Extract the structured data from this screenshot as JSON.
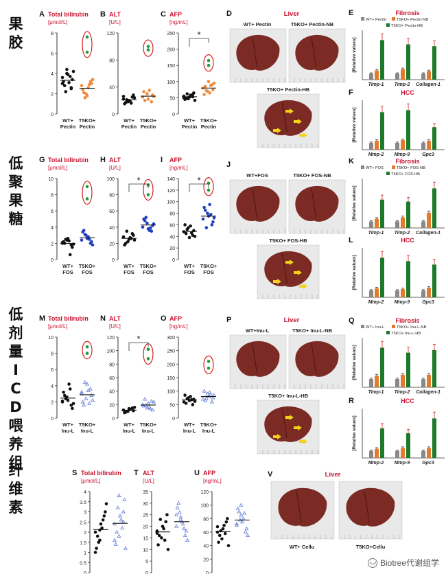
{
  "rows": [
    {
      "label": "果胶",
      "kind": "pectin"
    },
    {
      "label": "低聚果糖",
      "kind": "fos"
    },
    {
      "label": "低剂量ICD喂养组",
      "kind": "inu"
    },
    {
      "label": "纤维素",
      "kind": "cellu"
    }
  ],
  "watermark": "Biotree代谢组学",
  "colors": {
    "wt": "#111111",
    "t5ko_pectin": "#f08a3c",
    "t5ko_fos": "#1f3fc0",
    "t5ko_inu": "#6d86d8",
    "outlier": "#1f9a3a",
    "ring": "#d91c1c",
    "sig_title": "#c8102e",
    "bar_wt": "#888888",
    "bar_nb": "#e27b2e",
    "bar_hb": "#1d7a2a"
  },
  "panels": [
    {
      "letter": "A",
      "title": "Total bilirubin",
      "unit": "[μmol/L]",
      "groups": [
        "WT+\nPectin",
        "T5KO+\nPectin"
      ],
      "yticks": [
        "0",
        "2",
        "4",
        "6",
        "8"
      ],
      "ymax": 8,
      "sig": "",
      "chart_data": {
        "type": "scatter",
        "series": [
          {
            "name": "WT+ Pectin",
            "values": [
              3.6,
              4.0,
              2.5,
              3.2,
              3.9,
              3.4,
              2.8,
              3.1,
              4.2,
              2.2,
              3.7,
              3.0,
              4.4,
              2.6
            ]
          },
          {
            "name": "T5KO+ Pectin",
            "values": [
              2.8,
              2.0,
              3.2,
              2.4,
              1.8,
              3.0,
              2.1,
              2.6,
              3.4,
              1.6,
              2.9,
              7.6,
              6.1
            ]
          }
        ]
      }
    },
    {
      "letter": "B",
      "title": "ALT",
      "unit": "[U/L]",
      "groups": [
        "WT+\nPectin",
        "T5KO+\nPectin"
      ],
      "yticks": [
        "0",
        "40",
        "80",
        "120"
      ],
      "ymax": 120,
      "sig": "",
      "chart_data": {
        "type": "scatter",
        "series": [
          {
            "name": "WT+ Pectin",
            "values": [
              22,
              18,
              25,
              15,
              20,
              28,
              17,
              19,
              24,
              21,
              16,
              26
            ]
          },
          {
            "name": "T5KO+ Pectin",
            "values": [
              25,
              30,
              18,
              33,
              22,
              28,
              20,
              35,
              26,
              95,
              100
            ]
          }
        ]
      }
    },
    {
      "letter": "C",
      "title": "AFP",
      "unit": "[ng/mL]",
      "groups": [
        "WT+\nPectin",
        "T5KO+\nPectin"
      ],
      "yticks": [
        "0",
        "50",
        "100",
        "150",
        "200",
        "250"
      ],
      "ymax": 250,
      "sig": "*",
      "chart_data": {
        "type": "scatter",
        "series": [
          {
            "name": "WT+ Pectin",
            "values": [
              55,
              50,
              60,
              45,
              52,
              65,
              48,
              58,
              42,
              62,
              56,
              50,
              47,
              53
            ]
          },
          {
            "name": "T5KO+ Pectin",
            "values": [
              80,
              70,
              90,
              60,
              100,
              75,
              85,
              65,
              95,
              72,
              88,
              150,
              165
            ]
          }
        ]
      }
    },
    {
      "letter": "G",
      "title": "Total bilirubin",
      "unit": "[μmol/L]",
      "groups": [
        "WT+\nFOS",
        "T5KO+\nFOS"
      ],
      "yticks": [
        "0",
        "2",
        "4",
        "6",
        "8",
        "10"
      ],
      "ymax": 10,
      "sig": "",
      "chart_data": {
        "type": "scatter",
        "series": [
          {
            "name": "WT+ FOS",
            "values": [
              2.0,
              2.4,
              1.8,
              2.2,
              2.6,
              1.5,
              2.0,
              2.3,
              1.9,
              2.5,
              0.6,
              2.1
            ]
          },
          {
            "name": "T5KO+ FOS",
            "values": [
              2.4,
              3.0,
              2.0,
              3.4,
              2.6,
              2.2,
              3.6,
              2.8,
              1.8,
              3.1,
              2.5,
              7.5,
              9.0
            ]
          }
        ]
      }
    },
    {
      "letter": "H",
      "title": "ALT",
      "unit": "[U/L]",
      "groups": [
        "WT+\nFOS",
        "T5KO+\nFOS"
      ],
      "yticks": [
        "0",
        "20",
        "40",
        "60",
        "80",
        "100"
      ],
      "ymax": 100,
      "sig": "*",
      "chart_data": {
        "type": "scatter",
        "series": [
          {
            "name": "WT+ FOS",
            "values": [
              28,
              22,
              32,
              18,
              25,
              30,
              20,
              27,
              24,
              35,
              26
            ]
          },
          {
            "name": "T5KO+ FOS",
            "values": [
              40,
              45,
              35,
              50,
              38,
              42,
              48,
              36,
              44,
              52,
              39,
              80,
              92
            ]
          }
        ]
      }
    },
    {
      "letter": "I",
      "title": "AFP",
      "unit": "[ng/mL]",
      "groups": [
        "WT+\nFOS",
        "T5KO+\nFOS"
      ],
      "yticks": [
        "0",
        "20",
        "40",
        "60",
        "80",
        "100",
        "120",
        "140"
      ],
      "ymax": 140,
      "sig": "*",
      "chart_data": {
        "type": "scatter",
        "series": [
          {
            "name": "WT+ FOS",
            "values": [
              48,
              55,
              42,
              60,
              38,
              50,
              45,
              58,
              40,
              52,
              46
            ]
          },
          {
            "name": "T5KO+ FOS",
            "values": [
              70,
              80,
              60,
              90,
              75,
              65,
              85,
              95,
              72,
              55,
              78,
              120,
              132
            ]
          }
        ]
      }
    },
    {
      "letter": "M",
      "title": "Total bilirubin",
      "unit": "[μmol/L]",
      "groups": [
        "WT+\nInu-L",
        "T5KO+\nInu-L"
      ],
      "yticks": [
        "0",
        "2",
        "4",
        "6",
        "8",
        "10"
      ],
      "ymax": 10,
      "sig": "",
      "chart_data": {
        "type": "scatter",
        "series": [
          {
            "name": "WT+ Inu-L",
            "values": [
              2.0,
              2.6,
              1.6,
              3.2,
              2.2,
              1.2,
              2.8,
              4.2,
              1.8,
              2.4,
              3.6,
              2.1
            ]
          },
          {
            "name": "T5KO+ Inu-L",
            "values": [
              3.0,
              2.4,
              3.6,
              2.0,
              4.2,
              2.8,
              1.6,
              3.4,
              2.2,
              4.4,
              1.8,
              3.2,
              8.0,
              8.8
            ]
          }
        ]
      }
    },
    {
      "letter": "N",
      "title": "ALT",
      "unit": "[U/L]",
      "groups": [
        "WT+\nInu-L",
        "T5KO+\nInu-L"
      ],
      "yticks": [
        "0",
        "20",
        "40",
        "60",
        "80",
        "100",
        "120"
      ],
      "ymax": 120,
      "sig": "*",
      "chart_data": {
        "type": "scatter",
        "series": [
          {
            "name": "WT+ Inu-L",
            "values": [
              12,
              10,
              15,
              8,
              14,
              11,
              9,
              13,
              16,
              10
            ]
          },
          {
            "name": "T5KO+ Inu-L",
            "values": [
              20,
              15,
              25,
              18,
              22,
              12,
              28,
              16,
              24,
              19,
              14,
              88,
              102
            ]
          }
        ]
      }
    },
    {
      "letter": "O",
      "title": "AFP",
      "unit": "[ng/mL]",
      "groups": [
        "WT+\nInu-L",
        "T5KO+\nInu-L"
      ],
      "yticks": [
        "0",
        "50",
        "100",
        "150",
        "200",
        "250",
        "300"
      ],
      "ymax": 300,
      "sig": "",
      "chart_data": {
        "type": "scatter",
        "series": [
          {
            "name": "WT+ Inu-L",
            "values": [
              60,
              75,
              50,
              85,
              65,
              70,
              55,
              80,
              62,
              72,
              68
            ]
          },
          {
            "name": "T5KO+ Inu-L",
            "values": [
              70,
              90,
              60,
              100,
              80,
              75,
              65,
              95,
              85,
              72,
              88,
              210,
              185
            ]
          }
        ]
      }
    },
    {
      "letter": "S",
      "title": "Total bilirubin",
      "unit": "[μmol/L]",
      "groups": [
        "WT+\nCellu",
        "T5KO+\nCellu"
      ],
      "yticks": [
        "0",
        "0.5",
        "1",
        "1.5",
        "2",
        "2.5",
        "3",
        "3.5",
        "4"
      ],
      "ymax": 4,
      "sig": "",
      "chart_data": {
        "type": "scatter",
        "series": [
          {
            "name": "WT+ Cellu",
            "values": [
              2.0,
              1.6,
              2.8,
              1.2,
              2.4,
              3.0,
              1.8,
              2.2,
              3.4,
              1.5,
              2.6,
              1.0,
              2.1
            ]
          },
          {
            "name": "T5KO+ Cellu",
            "values": [
              2.4,
              1.8,
              3.0,
              1.4,
              2.8,
              3.6,
              2.0,
              2.6,
              1.2,
              3.2,
              2.2,
              1.6,
              3.8,
              2.5
            ]
          }
        ]
      }
    },
    {
      "letter": "T",
      "title": "ALT",
      "unit": "[U/L]",
      "groups": [
        "WT+\nCellu",
        "T5KO+\nCellu"
      ],
      "yticks": [
        "0",
        "5",
        "10",
        "15",
        "20",
        "25",
        "30",
        "35"
      ],
      "ymax": 35,
      "sig": "",
      "chart_data": {
        "type": "scatter",
        "series": [
          {
            "name": "WT+ Cellu",
            "values": [
              18,
              15,
              22,
              12,
              20,
              25,
              16,
              19,
              10,
              23,
              14,
              17
            ]
          },
          {
            "name": "T5KO+ Cellu",
            "values": [
              20,
              24,
              16,
              28,
              22,
              18,
              30,
              21,
              14,
              26,
              19,
              25,
              23
            ]
          }
        ]
      }
    },
    {
      "letter": "U",
      "title": "AFP",
      "unit": "[ng/mL]",
      "groups": [
        "WT+\nCellu",
        "T5KO+\nCellu"
      ],
      "yticks": [
        "0",
        "20",
        "40",
        "60",
        "80",
        "100",
        "120"
      ],
      "ymax": 120,
      "sig": "",
      "chart_data": {
        "type": "scatter",
        "series": [
          {
            "name": "WT+ Cellu",
            "values": [
              60,
              50,
              75,
              45,
              65,
              80,
              55,
              70,
              40,
              62,
              58,
              68
            ]
          },
          {
            "name": "T5KO+ Cellu",
            "values": [
              70,
              85,
              60,
              95,
              75,
              65,
              90,
              80,
              55,
              78,
              88,
              72,
              100
            ]
          }
        ]
      }
    }
  ],
  "liver_panels": [
    {
      "letter": "D",
      "title": "Liver",
      "top": [
        "WT+ Pectin",
        "T5KO+ Pectin-NB"
      ],
      "bottom": "T5KO+ Pectin-HB"
    },
    {
      "letter": "J",
      "title": "",
      "top": [
        "WT+FOS",
        "T5KO+ FOS-NB"
      ],
      "bottom": "T5KO+ FOS-HB"
    },
    {
      "letter": "P",
      "title": "Liver",
      "top": [
        "WT+Inu-L",
        "T5KO+ Inu-L-NB"
      ],
      "bottom": "T5KO+ Inu-L-HB"
    },
    {
      "letter": "V",
      "title": "Liver",
      "bottom_labels": [
        "WT+ Cellu",
        "T5KO+Cellu"
      ]
    }
  ],
  "bar_panels": [
    {
      "letter": "E",
      "title": "Fibrosis",
      "legend": [
        "WT+ Pectin",
        "T5KO+ Pectin-NB",
        "T5KO+ Pectin-HB"
      ],
      "ylabel": "[Relative values]",
      "chart_data": {
        "type": "bar",
        "categories": [
          "Timp-1",
          "Timp-2",
          "Collagen-1"
        ],
        "series": [
          {
            "name": "WT+ Pectin",
            "values": [
              1,
              1,
              1
            ]
          },
          {
            "name": "T5KO+ Pectin-NB",
            "values": [
              1.5,
              1.7,
              1.4
            ]
          },
          {
            "name": "T5KO+ Pectin-HB",
            "values": [
              6.5,
              5.8,
              5.5
            ]
          }
        ]
      }
    },
    {
      "letter": "F",
      "title": "HCC",
      "legend": [],
      "ylabel": "[Relative values]",
      "chart_data": {
        "type": "bar",
        "categories": [
          "Mmp-2",
          "Mmp-9",
          "Gpc3"
        ],
        "series": [
          {
            "name": "WT+ Pectin",
            "values": [
              1,
              1,
              1
            ]
          },
          {
            "name": "T5KO+ Pectin-NB",
            "values": [
              1.3,
              1.4,
              1.3
            ]
          },
          {
            "name": "T5KO+ Pectin-HB",
            "values": [
              5.5,
              5.8,
              3.3
            ]
          }
        ]
      }
    },
    {
      "letter": "K",
      "title": "Fibrosis",
      "legend": [
        "WT+ FOS",
        "T5KO+ FOS-NB",
        "T5KO+ FOS-HB"
      ],
      "ylabel": "[Relative values]",
      "chart_data": {
        "type": "bar",
        "categories": [
          "Timp-1",
          "Timp-2",
          "Collagen-1"
        ],
        "series": [
          {
            "name": "WT+ FOS",
            "values": [
              1,
              1,
              1
            ]
          },
          {
            "name": "T5KO+ FOS-NB",
            "values": [
              1.4,
              1.6,
              2.3
            ]
          },
          {
            "name": "T5KO+ FOS-HB",
            "values": [
              4.3,
              4.0,
              6.0
            ]
          }
        ]
      }
    },
    {
      "letter": "L",
      "title": "HCC",
      "legend": [],
      "ylabel": "[Relative values]",
      "chart_data": {
        "type": "bar",
        "categories": [
          "Mmp-2",
          "Mmp-9",
          "Gpc3"
        ],
        "series": [
          {
            "name": "WT+ FOS",
            "values": [
              1,
              1,
              1
            ]
          },
          {
            "name": "T5KO+ FOS-NB",
            "values": [
              1.3,
              1.2,
              1.4
            ]
          },
          {
            "name": "T5KO+ FOS-HB",
            "values": [
              5.8,
              5.3,
              4.8
            ]
          }
        ]
      }
    },
    {
      "letter": "Q",
      "title": "Fibrosis",
      "legend": [
        "WT+ Inu-L",
        "T5KO+ Inu-L-NB",
        "T5KO+ Inu-L-HB"
      ],
      "ylabel": "[Relative values]",
      "chart_data": {
        "type": "bar",
        "categories": [
          "Timp-1",
          "Timp-2",
          "Collagen-1"
        ],
        "series": [
          {
            "name": "WT+ Inu-L",
            "values": [
              1,
              1,
              1
            ]
          },
          {
            "name": "T5KO+ Inu-L-NB",
            "values": [
              1.4,
              1.5,
              1.5
            ]
          },
          {
            "name": "T5KO+ Inu-L-HB",
            "values": [
              4.8,
              4.2,
              4.5
            ]
          }
        ]
      }
    },
    {
      "letter": "R",
      "title": "HCC",
      "legend": [],
      "ylabel": "[Relative values]",
      "chart_data": {
        "type": "bar",
        "categories": [
          "Mmp-2",
          "Mmp-9",
          "Gpc3"
        ],
        "series": [
          {
            "name": "WT+ Inu-L",
            "values": [
              1,
              1,
              1
            ]
          },
          {
            "name": "T5KO+ Inu-L-NB",
            "values": [
              1.3,
              1.4,
              1.4
            ]
          },
          {
            "name": "T5KO+ Inu-L-HB",
            "values": [
              4.2,
              3.5,
              5.6
            ]
          }
        ]
      }
    }
  ]
}
